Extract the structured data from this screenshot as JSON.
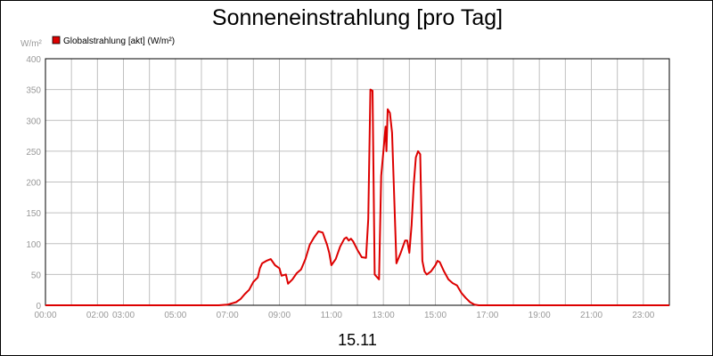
{
  "chart_data": {
    "type": "line",
    "title": "Sonneneinstrahlung [pro Tag]",
    "xlabel": "15.11",
    "ylabel": "W/m²",
    "ylim": [
      0,
      400
    ],
    "xlim": [
      "00:00",
      "24:00"
    ],
    "yticks": [
      0,
      50,
      100,
      150,
      200,
      250,
      300,
      350,
      400
    ],
    "xtick_labels": [
      "00:00",
      "02:00",
      "03:00",
      "05:00",
      "07:00",
      "09:00",
      "11:00",
      "13:00",
      "15:00",
      "17:00",
      "19:00",
      "21:00",
      "23:00"
    ],
    "grid": true,
    "legend": {
      "placement": "top-left",
      "entries": [
        "Globalstrahlung [akt] (W/m²)"
      ]
    },
    "colors": {
      "series": "#dd0000",
      "grid": "#c0c0c0",
      "axis_text": "#999999"
    },
    "series": [
      {
        "name": "Globalstrahlung [akt] (W/m²)",
        "points": [
          [
            "00:00",
            0
          ],
          [
            "06:40",
            0
          ],
          [
            "07:00",
            1
          ],
          [
            "07:20",
            5
          ],
          [
            "07:30",
            10
          ],
          [
            "07:40",
            18
          ],
          [
            "07:50",
            25
          ],
          [
            "08:00",
            38
          ],
          [
            "08:10",
            45
          ],
          [
            "08:15",
            60
          ],
          [
            "08:20",
            68
          ],
          [
            "08:30",
            72
          ],
          [
            "08:40",
            75
          ],
          [
            "08:50",
            65
          ],
          [
            "09:00",
            60
          ],
          [
            "09:05",
            48
          ],
          [
            "09:15",
            50
          ],
          [
            "09:20",
            35
          ],
          [
            "09:30",
            42
          ],
          [
            "09:40",
            52
          ],
          [
            "09:50",
            58
          ],
          [
            "10:00",
            75
          ],
          [
            "10:10",
            98
          ],
          [
            "10:20",
            110
          ],
          [
            "10:30",
            120
          ],
          [
            "10:40",
            118
          ],
          [
            "10:45",
            108
          ],
          [
            "10:50",
            98
          ],
          [
            "10:55",
            85
          ],
          [
            "11:00",
            65
          ],
          [
            "11:10",
            75
          ],
          [
            "11:20",
            95
          ],
          [
            "11:30",
            108
          ],
          [
            "11:35",
            110
          ],
          [
            "11:40",
            105
          ],
          [
            "11:45",
            108
          ],
          [
            "11:50",
            104
          ],
          [
            "12:00",
            90
          ],
          [
            "12:10",
            78
          ],
          [
            "12:20",
            77
          ],
          [
            "12:25",
            140
          ],
          [
            "12:30",
            350
          ],
          [
            "12:35",
            348
          ],
          [
            "12:40",
            50
          ],
          [
            "12:50",
            42
          ],
          [
            "12:55",
            210
          ],
          [
            "13:00",
            250
          ],
          [
            "13:05",
            290
          ],
          [
            "13:07",
            250
          ],
          [
            "13:10",
            318
          ],
          [
            "13:15",
            312
          ],
          [
            "13:20",
            280
          ],
          [
            "13:30",
            68
          ],
          [
            "13:40",
            85
          ],
          [
            "13:50",
            105
          ],
          [
            "13:55",
            105
          ],
          [
            "14:00",
            85
          ],
          [
            "14:05",
            130
          ],
          [
            "14:10",
            195
          ],
          [
            "14:15",
            240
          ],
          [
            "14:20",
            250
          ],
          [
            "14:25",
            245
          ],
          [
            "14:30",
            72
          ],
          [
            "14:35",
            55
          ],
          [
            "14:40",
            50
          ],
          [
            "14:50",
            55
          ],
          [
            "15:00",
            65
          ],
          [
            "15:05",
            72
          ],
          [
            "15:10",
            70
          ],
          [
            "15:20",
            55
          ],
          [
            "15:30",
            42
          ],
          [
            "15:40",
            36
          ],
          [
            "15:50",
            32
          ],
          [
            "16:00",
            20
          ],
          [
            "16:10",
            12
          ],
          [
            "16:20",
            5
          ],
          [
            "16:30",
            1
          ],
          [
            "16:40",
            0
          ],
          [
            "24:00",
            0
          ]
        ]
      }
    ]
  }
}
